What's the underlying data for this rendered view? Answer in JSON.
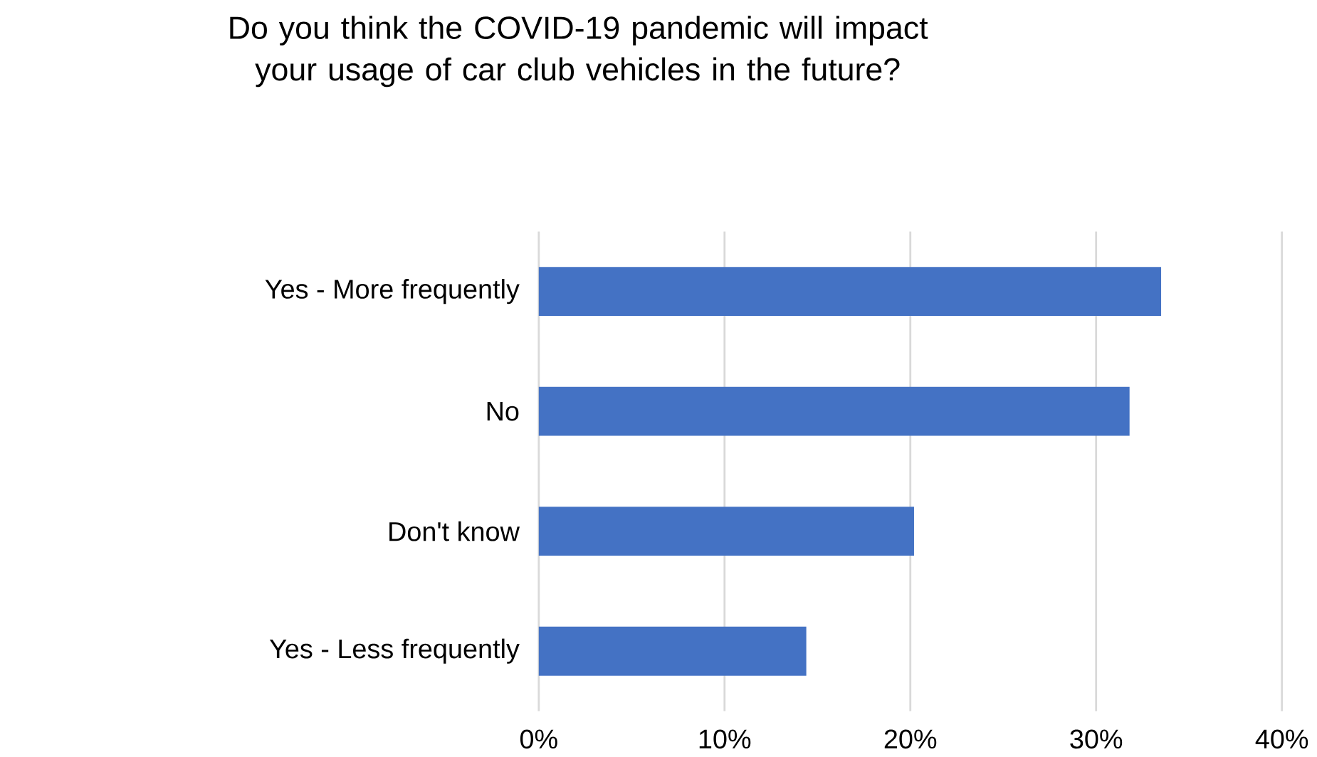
{
  "chart_data": {
    "type": "bar",
    "orientation": "horizontal",
    "title": "Do you think the COVID-19 pandemic will impact your usage of car club vehicles in the future?",
    "categories": [
      "Yes - More frequently",
      "No",
      "Don't know",
      "Yes - Less frequently"
    ],
    "values": [
      33.5,
      31.8,
      20.2,
      14.4
    ],
    "color": "#4472c4",
    "xlim": [
      0,
      40
    ],
    "xticks": [
      {
        "value": 0,
        "label": "0%"
      },
      {
        "value": 10,
        "label": "10%"
      },
      {
        "value": 20,
        "label": "20%"
      },
      {
        "value": 30,
        "label": "30%"
      },
      {
        "value": 40,
        "label": "40%"
      }
    ],
    "grid": "x"
  }
}
